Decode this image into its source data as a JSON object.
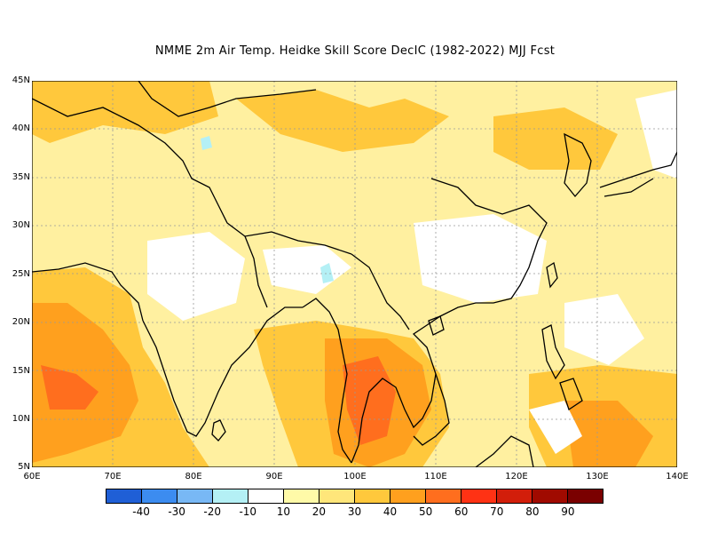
{
  "title": "NMME  2m Air Temp. Heidke Skill Score DecIC (1982-2022) MJJ Fcst",
  "lat_labels": [
    "45N",
    "40N",
    "35N",
    "30N",
    "25N",
    "20N",
    "15N",
    "10N",
    "5N"
  ],
  "lon_labels": [
    "60E",
    "70E",
    "80E",
    "90E",
    "100E",
    "110E",
    "120E",
    "130E",
    "140E"
  ],
  "colorbar": {
    "colors": [
      "#1f5fd6",
      "#3c8cf0",
      "#78b8f5",
      "#b4f0f5",
      "#ffffff",
      "#fffaa8",
      "#ffe67a",
      "#ffc83c",
      "#ffa01e",
      "#ff6e1e",
      "#ff3214",
      "#d21e0a",
      "#a00a00",
      "#7a0000"
    ],
    "labels": [
      "-40",
      "-30",
      "-20",
      "-10",
      "10",
      "20",
      "30",
      "40",
      "50",
      "60",
      "70",
      "80",
      "90"
    ]
  },
  "map": {
    "region": {
      "lon_min": 60,
      "lon_max": 140,
      "lat_min": 5,
      "lat_max": 45
    },
    "background_color": "#fff0a0",
    "field_colors": {
      "lt10": "#ffffff",
      "10_20": "#fffaa8",
      "20_30": "#ffe67a",
      "30_40": "#ffc83c",
      "40_50": "#ffa01e",
      "50_60": "#ff6e1e",
      "neg10": "#b4f0f5"
    }
  }
}
